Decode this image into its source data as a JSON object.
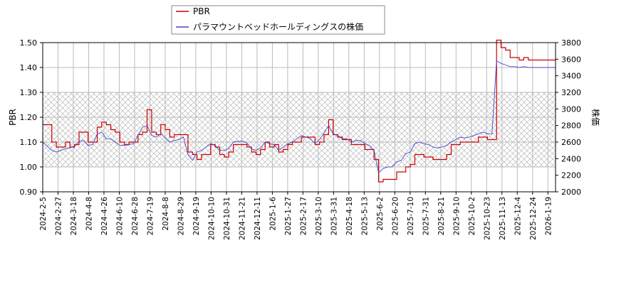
{
  "chart_data": {
    "type": "line",
    "ylabel": "PBR",
    "y2label": "株価",
    "ylim": [
      0.9,
      1.5
    ],
    "y2lim": [
      2000,
      3800
    ],
    "yticks": [
      "0.90",
      "1.00",
      "1.10",
      "1.20",
      "1.30",
      "1.40",
      "1.50"
    ],
    "y2ticks": [
      "2000",
      "2200",
      "2400",
      "2600",
      "2800",
      "3000",
      "3200",
      "3400",
      "3600",
      "3800"
    ],
    "xticks": [
      "2024-2-5",
      "2024-2-27",
      "2024-3-18",
      "2024-4-8",
      "2024-4-26",
      "2024-6-10",
      "2024-6-28",
      "2024-7-19",
      "2024-8-8",
      "2024-8-29",
      "2024-9-19",
      "2024-10-10",
      "2024-10-31",
      "2024-11-21",
      "2024-12-11",
      "2025-1-6",
      "2025-1-27",
      "2025-2-17",
      "2025-3-10",
      "2025-3-31",
      "2025-4-18",
      "2025-5-13",
      "2025-6-2",
      "2025-6-20",
      "2025-7-10",
      "2025-7-31",
      "2025-8-21",
      "2025-9-10",
      "2025-10-2",
      "2025-10-23",
      "2025-11-13",
      "2025-12-4",
      "2025-12-24",
      "2026-1-19"
    ],
    "hatch_band": [
      1.0,
      1.3
    ],
    "grid": true,
    "legend_position": "top-left",
    "series": [
      {
        "name": "PBR",
        "axis": "left",
        "color": "#cc0000",
        "values": [
          1.17,
          1.17,
          1.1,
          1.08,
          1.08,
          1.1,
          1.08,
          1.09,
          1.14,
          1.14,
          1.1,
          1.1,
          1.16,
          1.18,
          1.17,
          1.15,
          1.14,
          1.1,
          1.09,
          1.1,
          1.1,
          1.13,
          1.14,
          1.23,
          1.14,
          1.13,
          1.17,
          1.15,
          1.12,
          1.13,
          1.13,
          1.13,
          1.06,
          1.05,
          1.03,
          1.05,
          1.05,
          1.09,
          1.08,
          1.05,
          1.04,
          1.06,
          1.09,
          1.09,
          1.09,
          1.08,
          1.06,
          1.05,
          1.07,
          1.1,
          1.08,
          1.09,
          1.06,
          1.07,
          1.09,
          1.1,
          1.1,
          1.12,
          1.12,
          1.12,
          1.09,
          1.1,
          1.13,
          1.19,
          1.13,
          1.12,
          1.11,
          1.11,
          1.09,
          1.09,
          1.09,
          1.07,
          1.07,
          1.03,
          0.94,
          0.95,
          0.95,
          0.95,
          0.98,
          0.98,
          1.0,
          1.01,
          1.05,
          1.05,
          1.04,
          1.04,
          1.03,
          1.03,
          1.03,
          1.05,
          1.09,
          1.09,
          1.1,
          1.1,
          1.1,
          1.1,
          1.12,
          1.12,
          1.11,
          1.11,
          1.51,
          1.48,
          1.47,
          1.44,
          1.44,
          1.43,
          1.44,
          1.43,
          1.43,
          1.43,
          1.43,
          1.43,
          1.43,
          1.43
        ]
      },
      {
        "name": "パラマウントベッドホールディングスの株価",
        "axis": "right",
        "color": "#4444cc",
        "values": [
          2600,
          2550,
          2500,
          2480,
          2500,
          2520,
          2530,
          2550,
          2610,
          2620,
          2560,
          2570,
          2700,
          2720,
          2640,
          2640,
          2600,
          2560,
          2560,
          2570,
          2580,
          2680,
          2780,
          2800,
          2680,
          2660,
          2700,
          2650,
          2600,
          2620,
          2630,
          2660,
          2450,
          2380,
          2480,
          2500,
          2540,
          2580,
          2560,
          2500,
          2500,
          2520,
          2600,
          2610,
          2610,
          2590,
          2520,
          2500,
          2530,
          2600,
          2580,
          2570,
          2500,
          2540,
          2580,
          2600,
          2640,
          2680,
          2660,
          2640,
          2580,
          2630,
          2710,
          2800,
          2700,
          2680,
          2640,
          2640,
          2600,
          2620,
          2620,
          2580,
          2560,
          2500,
          2230,
          2280,
          2300,
          2300,
          2360,
          2380,
          2460,
          2480,
          2580,
          2600,
          2580,
          2570,
          2540,
          2530,
          2540,
          2560,
          2600,
          2630,
          2660,
          2650,
          2660,
          2680,
          2700,
          2720,
          2700,
          2700,
          3580,
          3550,
          3530,
          3510,
          3510,
          3500,
          3510,
          3500,
          3500,
          3500,
          3500,
          3500,
          3500,
          3500
        ]
      }
    ]
  }
}
